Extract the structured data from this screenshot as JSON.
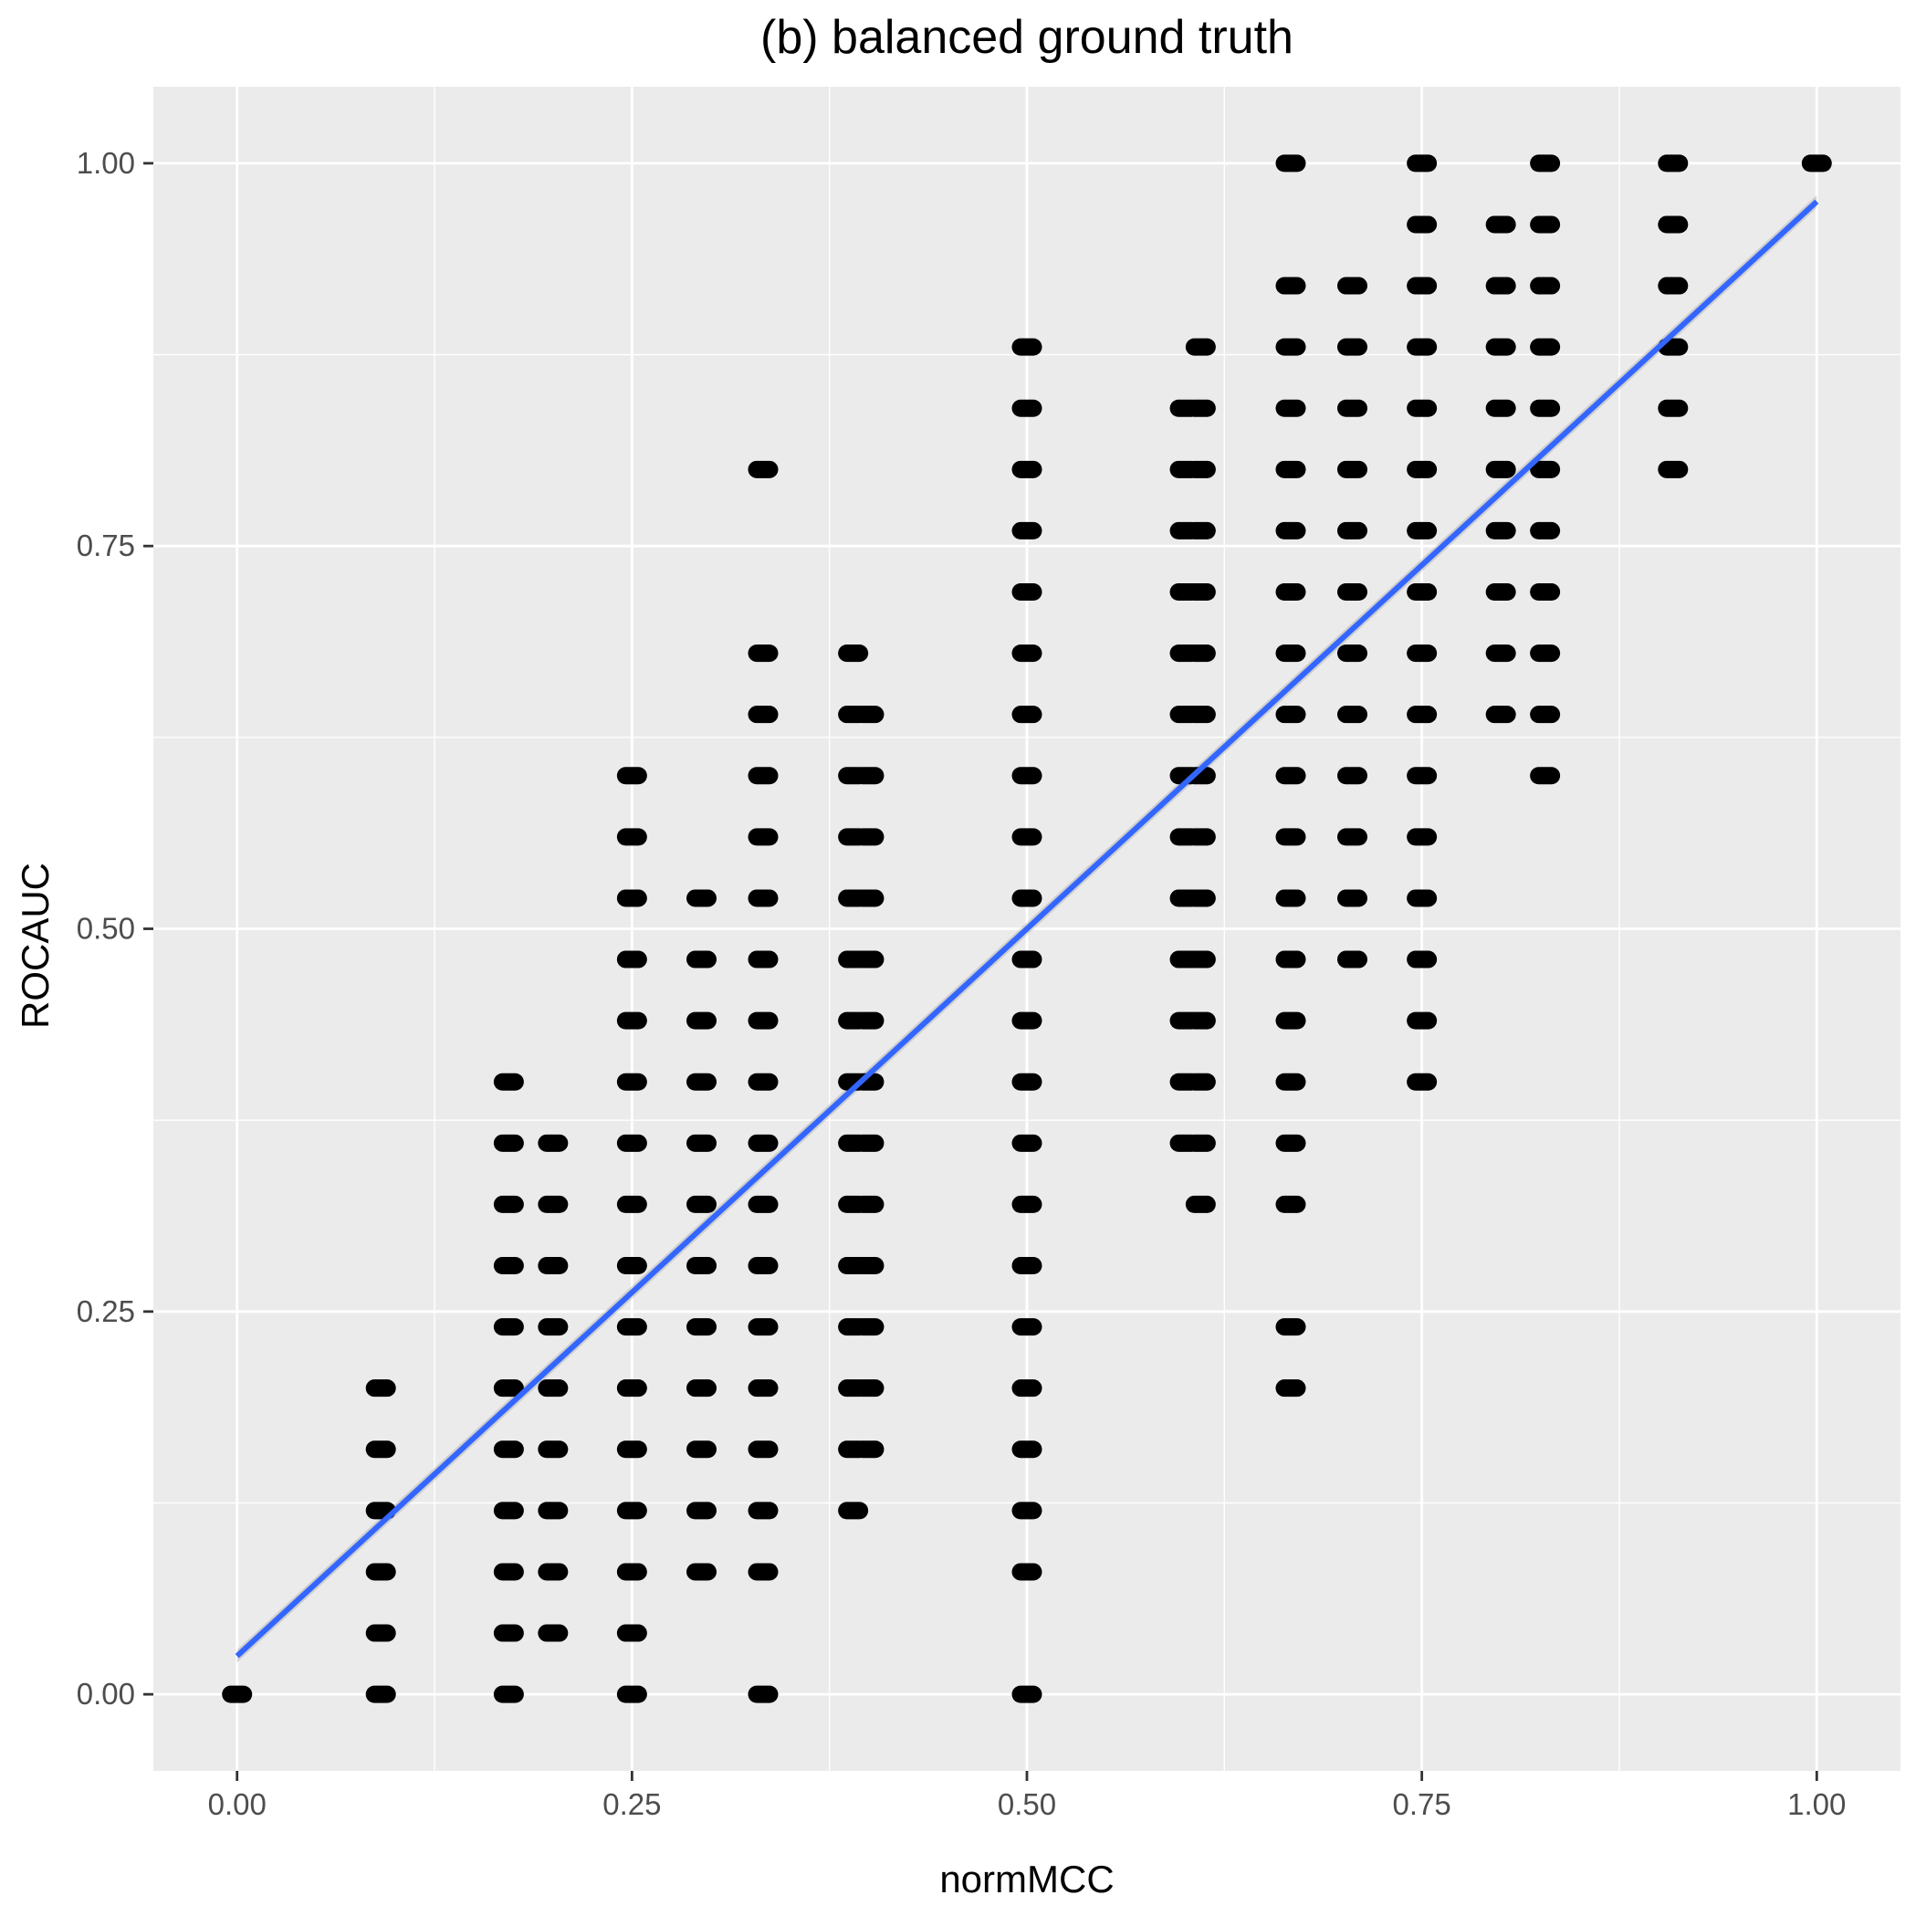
{
  "chart_data": {
    "type": "scatter",
    "title": "(b) balanced ground truth",
    "xlabel": "normMCC",
    "ylabel": "ROCAUC",
    "xlim": [
      -0.053,
      1.053
    ],
    "ylim": [
      -0.05,
      1.05
    ],
    "x_ticks": [
      0,
      0.25,
      0.5,
      0.75,
      1
    ],
    "x_tick_labels": [
      "0.00",
      "0.25",
      "0.50",
      "0.75",
      "1.00"
    ],
    "y_ticks": [
      0,
      0.25,
      0.5,
      0.75,
      1
    ],
    "y_tick_labels": [
      "0.00",
      "0.25",
      "0.50",
      "0.75",
      "1.00"
    ],
    "grid": true,
    "legend": "none",
    "colors": {
      "panel": "#ebebeb",
      "grid": "#ffffff",
      "points": "#000000",
      "fit_line": "#3366ff",
      "fit_band": "#999999"
    },
    "fit_line": {
      "x": [
        0,
        1
      ],
      "y": [
        0.025,
        0.975
      ]
    },
    "point_columns": [
      {
        "x": 0.0,
        "y": [
          0
        ]
      },
      {
        "x": 0.091,
        "y": [
          0,
          0.04,
          0.08,
          0.12,
          0.16,
          0.2
        ]
      },
      {
        "x": 0.172,
        "y": [
          0,
          0.04,
          0.08,
          0.12,
          0.16,
          0.2,
          0.24,
          0.28,
          0.32,
          0.36,
          0.4
        ]
      },
      {
        "x": 0.2,
        "y": [
          0.04,
          0.08,
          0.12,
          0.16,
          0.2,
          0.24,
          0.28,
          0.32,
          0.36
        ]
      },
      {
        "x": 0.25,
        "y": [
          0,
          0.04,
          0.08,
          0.12,
          0.16,
          0.2,
          0.24,
          0.28,
          0.32,
          0.36,
          0.4,
          0.44,
          0.48,
          0.52,
          0.56,
          0.6
        ]
      },
      {
        "x": 0.294,
        "y": [
          0.08,
          0.12,
          0.16,
          0.2,
          0.24,
          0.28,
          0.32,
          0.36,
          0.4,
          0.44,
          0.48,
          0.52
        ]
      },
      {
        "x": 0.333,
        "y": [
          0,
          0.08,
          0.12,
          0.16,
          0.2,
          0.24,
          0.28,
          0.32,
          0.36,
          0.4,
          0.44,
          0.48,
          0.52,
          0.56,
          0.6,
          0.64,
          0.68,
          0.8
        ]
      },
      {
        "x": 0.39,
        "y": [
          0.12,
          0.16,
          0.2,
          0.24,
          0.28,
          0.32,
          0.36,
          0.4,
          0.44,
          0.48,
          0.52,
          0.56,
          0.6,
          0.64,
          0.68
        ]
      },
      {
        "x": 0.4,
        "y": [
          0.16,
          0.2,
          0.24,
          0.28,
          0.32,
          0.36,
          0.4,
          0.44,
          0.48,
          0.52,
          0.56,
          0.6,
          0.64
        ]
      },
      {
        "x": 0.5,
        "y": [
          0,
          0.08,
          0.12,
          0.16,
          0.2,
          0.24,
          0.28,
          0.32,
          0.36,
          0.4,
          0.44,
          0.48,
          0.52,
          0.56,
          0.6,
          0.64,
          0.68,
          0.72,
          0.76,
          0.8,
          0.84,
          0.88
        ]
      },
      {
        "x": 0.6,
        "y": [
          0.36,
          0.4,
          0.44,
          0.48,
          0.52,
          0.56,
          0.6,
          0.64,
          0.68,
          0.72,
          0.76,
          0.8,
          0.84
        ]
      },
      {
        "x": 0.61,
        "y": [
          0.32,
          0.36,
          0.4,
          0.44,
          0.48,
          0.52,
          0.56,
          0.6,
          0.64,
          0.68,
          0.72,
          0.76,
          0.8,
          0.84,
          0.88
        ]
      },
      {
        "x": 0.667,
        "y": [
          0.2,
          0.24,
          0.32,
          0.36,
          0.4,
          0.44,
          0.48,
          0.52,
          0.56,
          0.6,
          0.64,
          0.68,
          0.72,
          0.76,
          0.8,
          0.84,
          0.88,
          0.92,
          1.0
        ]
      },
      {
        "x": 0.706,
        "y": [
          0.48,
          0.52,
          0.56,
          0.6,
          0.64,
          0.68,
          0.72,
          0.76,
          0.8,
          0.84,
          0.88,
          0.92
        ]
      },
      {
        "x": 0.75,
        "y": [
          0.4,
          0.44,
          0.48,
          0.52,
          0.56,
          0.6,
          0.64,
          0.68,
          0.72,
          0.76,
          0.8,
          0.84,
          0.88,
          0.92,
          0.96,
          1.0
        ]
      },
      {
        "x": 0.8,
        "y": [
          0.64,
          0.68,
          0.72,
          0.76,
          0.8,
          0.84,
          0.88,
          0.92,
          0.96
        ]
      },
      {
        "x": 0.828,
        "y": [
          0.6,
          0.64,
          0.68,
          0.72,
          0.76,
          0.8,
          0.84,
          0.88,
          0.92,
          0.96,
          1.0
        ]
      },
      {
        "x": 0.909,
        "y": [
          0.8,
          0.84,
          0.88,
          0.92,
          0.96,
          1.0
        ]
      },
      {
        "x": 1.0,
        "y": [
          1.0
        ]
      }
    ]
  }
}
